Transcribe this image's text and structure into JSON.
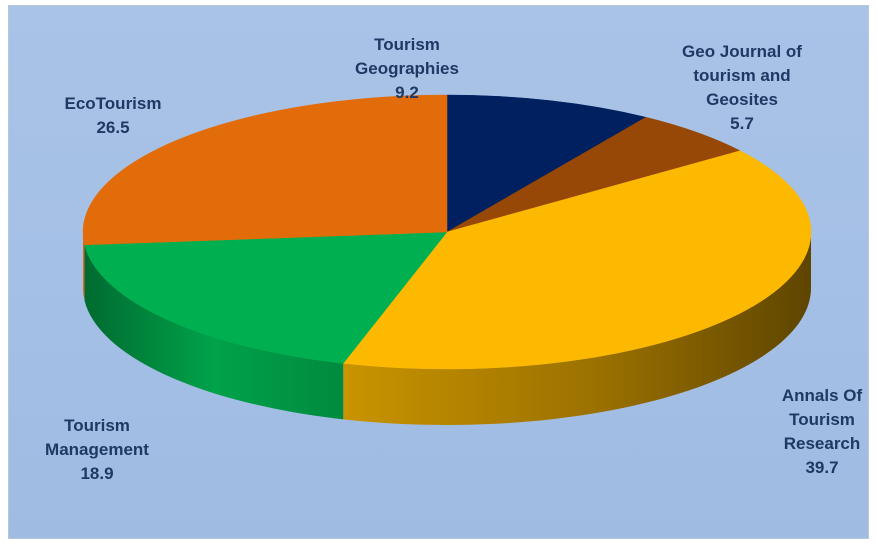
{
  "chart_data": {
    "type": "pie",
    "style": "3d-exploded-none",
    "categories": [
      "Tourism Geographies",
      "Geo Journal of tourism and Geosites",
      "Annals Of Tourism Research",
      "Tourism Management",
      "EcoTourism"
    ],
    "values": [
      9.2,
      5.7,
      39.7,
      18.9,
      26.5
    ],
    "labels": [
      {
        "lines": [
          "Tourism",
          "Geographies"
        ],
        "value": "9.2"
      },
      {
        "lines": [
          "Geo Journal of",
          "tourism and",
          "Geosites"
        ],
        "value": "5.7"
      },
      {
        "lines": [
          "Annals Of",
          "Tourism",
          "Research"
        ],
        "value": "39.7"
      },
      {
        "lines": [
          "Tourism",
          "Management"
        ],
        "value": "18.9"
      },
      {
        "lines": [
          "EcoTourism"
        ],
        "value": "26.5"
      }
    ],
    "colors": [
      "#002060",
      "#974706",
      "#fcb900",
      "#00b050",
      "#e36c0a"
    ],
    "side_colors": [
      "#001440",
      "#5e2c04",
      "#b38300",
      "#00883d",
      "#a34e07"
    ],
    "label_color": "#1f3864",
    "background": "#a6c1e6",
    "legend": "none",
    "title": ""
  }
}
